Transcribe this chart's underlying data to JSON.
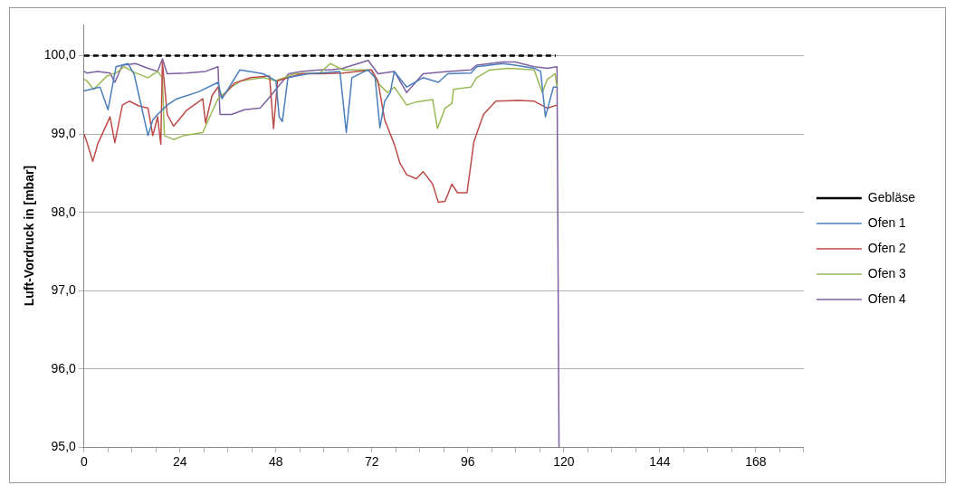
{
  "chart_data": {
    "type": "line",
    "ylabel": "Luft-Vordruck in [mbar]",
    "xlim": [
      0,
      180
    ],
    "xticks": [
      0,
      {
        "value": 6,
        "label": null
      },
      {
        "value": 12,
        "label": null
      },
      {
        "value": 18,
        "label": null
      },
      24,
      {
        "value": 30,
        "label": null
      },
      {
        "value": 36,
        "label": null
      },
      {
        "value": 42,
        "label": null
      },
      48,
      {
        "value": 54,
        "label": null
      },
      {
        "value": 60,
        "label": null
      },
      {
        "value": 66,
        "label": null
      },
      72,
      {
        "value": 78,
        "label": null
      },
      {
        "value": 84,
        "label": null
      },
      {
        "value": 90,
        "label": null
      },
      96,
      {
        "value": 102,
        "label": null
      },
      {
        "value": 108,
        "label": null
      },
      {
        "value": 114,
        "label": null
      },
      120,
      {
        "value": 126,
        "label": null
      },
      {
        "value": 132,
        "label": null
      },
      {
        "value": 138,
        "label": null
      },
      144,
      {
        "value": 150,
        "label": null
      },
      {
        "value": 156,
        "label": null
      },
      {
        "value": 162,
        "label": null
      },
      168,
      {
        "value": 174,
        "label": null
      },
      {
        "value": 180,
        "label": null
      }
    ],
    "ylim": [
      95,
      100.4
    ],
    "yticks": [
      {
        "value": 95,
        "label": "95,0"
      },
      {
        "value": 96,
        "label": "96,0"
      },
      {
        "value": 97,
        "label": "97,0"
      },
      {
        "value": 98,
        "label": "98,0"
      },
      {
        "value": 99,
        "label": "99,0"
      },
      {
        "value": 100,
        "label": "100,0"
      }
    ],
    "grid": "y",
    "legend": "right",
    "marker": "none",
    "series": [
      {
        "name": "Gebläse",
        "color": "#000000",
        "line_style": "dashed",
        "x": [
          0,
          118
        ],
        "values": [
          100,
          100
        ]
      },
      {
        "name": "Ofen 1",
        "color": "#4a7ebb",
        "x": [
          0,
          4,
          6,
          8,
          11,
          12.5,
          16,
          17.2,
          18.4,
          20.8,
          23.2,
          28.7,
          33.5,
          34.5,
          39,
          44.8,
          48,
          48.8,
          49.6,
          51,
          56,
          59,
          64,
          65.6,
          67,
          71,
          72.8,
          74,
          75.2,
          76.6,
          77.6,
          80.7,
          84.8,
          88.6,
          91,
          96.8,
          98.2,
          104.7,
          107.8,
          112.6,
          114.2,
          115.4,
          117.4,
          118.3
        ],
        "values": [
          99.55,
          99.6,
          99.31,
          99.86,
          99.9,
          99.77,
          98.98,
          99.18,
          99.25,
          99.37,
          99.45,
          99.54,
          99.66,
          99.45,
          99.82,
          99.77,
          99.68,
          99.22,
          99.16,
          99.72,
          99.77,
          99.78,
          99.8,
          99.02,
          99.72,
          99.82,
          99.72,
          99.08,
          99.42,
          99.53,
          99.8,
          99.6,
          99.72,
          99.66,
          99.77,
          99.78,
          99.86,
          99.9,
          99.88,
          99.84,
          99.8,
          99.22,
          99.6,
          99.6
        ]
      },
      {
        "name": "Ofen 2",
        "color": "#be4b48",
        "x": [
          0,
          0.7,
          2.2,
          3.4,
          6.5,
          7.7,
          9.6,
          11.3,
          13.7,
          16,
          17.2,
          18.4,
          19.2,
          19.6,
          20.8,
          22.4,
          25.6,
          29.7,
          30.4,
          32,
          33.5,
          34.5,
          37.6,
          41.7,
          46.4,
          47.4,
          48.4,
          54.4,
          59,
          64.7,
          71.9,
          73.5,
          75.2,
          77.6,
          79,
          80.7,
          83.1,
          84.8,
          87.2,
          88.6,
          90.3,
          92,
          93.4,
          95.8,
          97.5,
          99.9,
          103,
          108.7,
          112.6,
          115.9,
          118.3
        ],
        "values": [
          99.0,
          98.9,
          98.65,
          98.87,
          99.22,
          98.89,
          99.37,
          99.42,
          99.36,
          99.33,
          98.98,
          99.22,
          98.87,
          99.92,
          99.25,
          99.1,
          99.3,
          99.45,
          99.14,
          99.49,
          99.6,
          99.47,
          99.65,
          99.72,
          99.74,
          99.07,
          99.68,
          99.77,
          99.77,
          99.78,
          99.82,
          99.68,
          99.18,
          98.87,
          98.63,
          98.48,
          98.43,
          98.52,
          98.36,
          98.13,
          98.14,
          98.36,
          98.25,
          98.25,
          98.9,
          99.25,
          99.42,
          99.43,
          99.42,
          99.33,
          99.37
        ]
      },
      {
        "name": "Ofen 3",
        "color": "#98b954",
        "x": [
          0,
          0.7,
          2.4,
          5.7,
          8,
          10,
          12.9,
          16,
          18.4,
          19.6,
          20.1,
          22.4,
          24.9,
          29.7,
          31.1,
          33.5,
          36.9,
          39.3,
          44.8,
          48,
          52.7,
          59,
          61.6,
          64.7,
          71.9,
          73.5,
          75.9,
          77.6,
          80.7,
          83.1,
          87.2,
          88.4,
          90.3,
          92,
          92.4,
          96.8,
          98.2,
          101.5,
          106.3,
          112.6,
          114.6,
          115.9,
          117.8,
          118.3
        ],
        "values": [
          99.7,
          99.68,
          99.57,
          99.74,
          99.78,
          99.86,
          99.78,
          99.72,
          99.8,
          99.72,
          98.98,
          98.93,
          98.98,
          99.02,
          99.18,
          99.45,
          99.6,
          99.68,
          99.72,
          99.68,
          99.77,
          99.78,
          99.9,
          99.82,
          99.82,
          99.65,
          99.53,
          99.6,
          99.37,
          99.41,
          99.44,
          99.07,
          99.33,
          99.39,
          99.57,
          99.6,
          99.72,
          99.82,
          99.84,
          99.82,
          99.53,
          99.7,
          99.77,
          99.6
        ]
      },
      {
        "name": "Ofen 4",
        "color": "#7d60a0",
        "x": [
          0,
          0.7,
          3.4,
          6.5,
          7.7,
          9.6,
          12.9,
          16,
          18.4,
          19.6,
          20.8,
          25.6,
          30.4,
          33.5,
          34,
          36.9,
          40.1,
          44,
          45.6,
          48,
          51.2,
          54.4,
          59,
          61.6,
          64.7,
          71.1,
          73.5,
          77.6,
          80.7,
          84.8,
          91,
          96.8,
          98.2,
          104.7,
          107.8,
          112.6,
          115.9,
          118.3,
          118.8
        ],
        "values": [
          99.8,
          99.78,
          99.8,
          99.78,
          99.66,
          99.88,
          99.9,
          99.84,
          99.8,
          99.96,
          99.77,
          99.78,
          99.8,
          99.86,
          99.25,
          99.25,
          99.31,
          99.33,
          99.42,
          99.57,
          99.77,
          99.8,
          99.82,
          99.82,
          99.84,
          99.94,
          99.77,
          99.8,
          99.53,
          99.77,
          99.8,
          99.82,
          99.88,
          99.92,
          99.92,
          99.86,
          99.84,
          99.86,
          95
        ]
      }
    ]
  }
}
